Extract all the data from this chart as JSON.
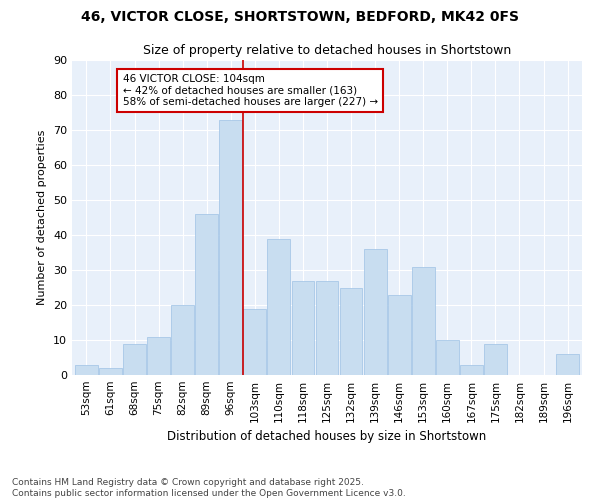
{
  "title1": "46, VICTOR CLOSE, SHORTSTOWN, BEDFORD, MK42 0FS",
  "title2": "Size of property relative to detached houses in Shortstown",
  "xlabel": "Distribution of detached houses by size in Shortstown",
  "ylabel": "Number of detached properties",
  "categories": [
    "53sqm",
    "61sqm",
    "68sqm",
    "75sqm",
    "82sqm",
    "89sqm",
    "96sqm",
    "103sqm",
    "110sqm",
    "118sqm",
    "125sqm",
    "132sqm",
    "139sqm",
    "146sqm",
    "153sqm",
    "160sqm",
    "167sqm",
    "175sqm",
    "182sqm",
    "189sqm",
    "196sqm"
  ],
  "values": [
    3,
    2,
    9,
    11,
    20,
    46,
    73,
    19,
    39,
    27,
    27,
    25,
    36,
    23,
    31,
    10,
    3,
    9,
    0,
    0,
    6
  ],
  "bar_color": "#c8ddf0",
  "bar_edge_color": "#a8c8e8",
  "vline_x": 6.5,
  "vline_color": "#cc0000",
  "annotation_text": "46 VICTOR CLOSE: 104sqm\n← 42% of detached houses are smaller (163)\n58% of semi-detached houses are larger (227) →",
  "annotation_box_color": "#ffffff",
  "annotation_box_edge": "#cc0000",
  "ylim": [
    0,
    90
  ],
  "yticks": [
    0,
    10,
    20,
    30,
    40,
    50,
    60,
    70,
    80,
    90
  ],
  "background_color": "#ffffff",
  "plot_bg_color": "#e8f0fa",
  "grid_color": "#ffffff",
  "footer1": "Contains HM Land Registry data © Crown copyright and database right 2025.",
  "footer2": "Contains public sector information licensed under the Open Government Licence v3.0."
}
